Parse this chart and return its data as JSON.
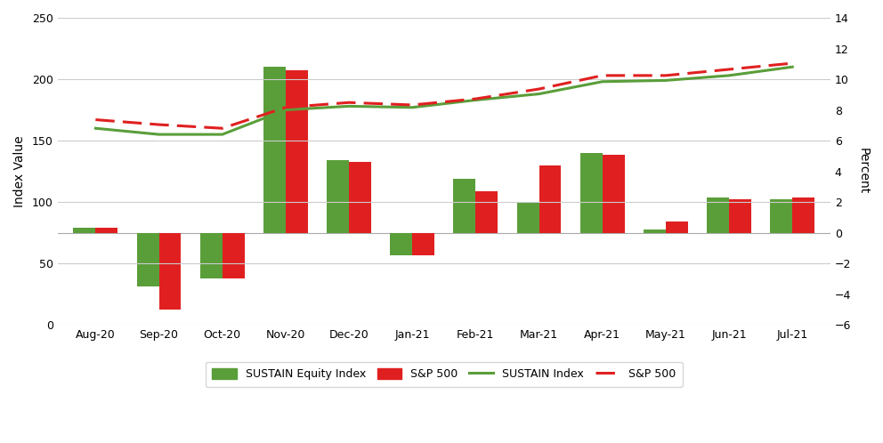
{
  "months": [
    "Aug-20",
    "Sep-20",
    "Oct-20",
    "Nov-20",
    "Dec-20",
    "Jan-21",
    "Feb-21",
    "Mar-21",
    "Apr-21",
    "May-21",
    "Jun-21",
    "Jul-21"
  ],
  "bar_sustain_pct": [
    0.3,
    -3.5,
    -3.0,
    10.8,
    4.7,
    -1.5,
    3.5,
    2.0,
    5.2,
    0.2,
    2.3,
    2.2
  ],
  "bar_sp500_pct": [
    0.3,
    -5.0,
    -3.0,
    10.6,
    4.6,
    -1.5,
    2.7,
    4.4,
    5.1,
    0.7,
    2.2,
    2.3
  ],
  "line_sustain": [
    160,
    155,
    155,
    175,
    178,
    177,
    183,
    188,
    198,
    199,
    203,
    210
  ],
  "line_sp500": [
    167,
    163,
    160,
    177,
    181,
    179,
    184,
    192,
    203,
    203,
    208,
    213
  ],
  "color_bar_sustain": "#5a9e3a",
  "color_bar_sp500": "#e02020",
  "color_line_sustain": "#5a9e3a",
  "color_line_sp500": "#e02020",
  "ylim_left": [
    0,
    250
  ],
  "ylim_right": [
    -6,
    14
  ],
  "yticks_left": [
    0,
    50,
    100,
    150,
    200,
    250
  ],
  "yticks_right": [
    -6,
    -4,
    -2,
    0,
    2,
    4,
    6,
    8,
    10,
    12,
    14
  ],
  "ylabel_left": "Index Value",
  "ylabel_right": "Percent",
  "background_color": "#ffffff",
  "grid_color": "#cccccc",
  "bar_width": 0.35,
  "legend_labels": [
    "SUSTAIN Equity Index",
    "S&P 500",
    "SUSTAIN Index",
    "S&P 500"
  ]
}
